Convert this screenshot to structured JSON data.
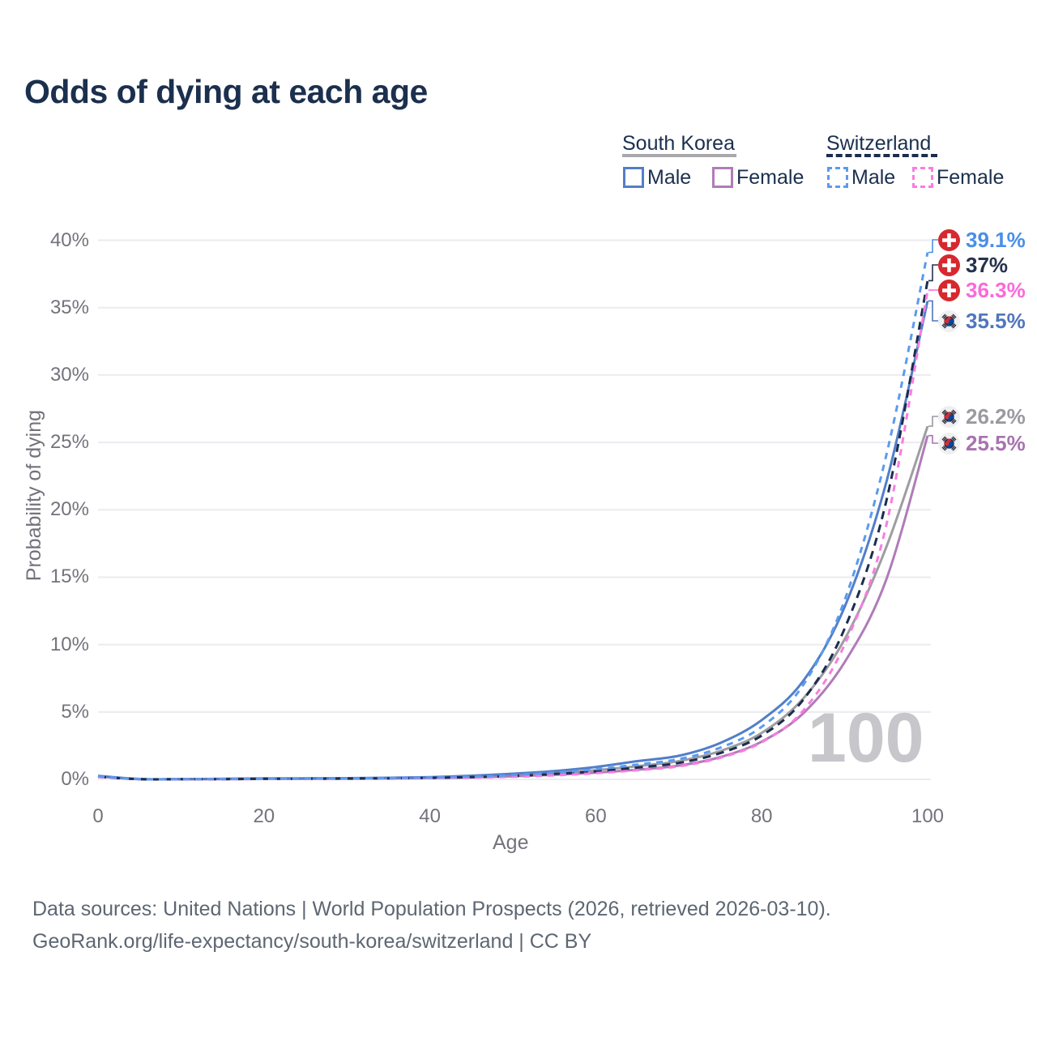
{
  "title": "Odds of dying at each age",
  "legend": {
    "groups": [
      {
        "label": "South Korea",
        "underline_color": "#a8a8ad",
        "underline_style": "solid",
        "items": [
          {
            "label": "Male",
            "color": "#537ec8",
            "style": "solid"
          },
          {
            "label": "Female",
            "color": "#b07cb8",
            "style": "solid"
          }
        ]
      },
      {
        "label": "Switzerland",
        "underline_color": "#1d2c4e",
        "underline_style": "dashed",
        "items": [
          {
            "label": "Male",
            "color": "#5a9bef",
            "style": "dashed"
          },
          {
            "label": "Female",
            "color": "#fa7ce0",
            "style": "dashed"
          }
        ]
      }
    ]
  },
  "watermark": "100",
  "footer": {
    "line1": "Data sources: United Nations | World Population Prospects (2026, retrieved 2026-03-10).",
    "line2": "GeoRank.org/life-expectancy/south-korea/switzerland | CC BY"
  },
  "chart_data": {
    "type": "line",
    "title": "Odds of dying at each age",
    "xlabel": "Age",
    "ylabel": "Probability of dying",
    "xlim": [
      0,
      100
    ],
    "ylim": [
      0,
      40
    ],
    "x_ticks": [
      0,
      20,
      40,
      60,
      80,
      100
    ],
    "y_ticks": [
      "0%",
      "5%",
      "10%",
      "15%",
      "20%",
      "25%",
      "30%",
      "35%",
      "40%"
    ],
    "grid": "horizontal-only",
    "grid_color": "#ebebf0",
    "x": [
      0,
      5,
      10,
      15,
      20,
      25,
      30,
      35,
      40,
      45,
      50,
      55,
      60,
      65,
      70,
      75,
      80,
      85,
      90,
      95,
      100
    ],
    "series": [
      {
        "name": "South Korea combined",
        "country": "South Korea",
        "sex": "combined",
        "color": "#9d9da2",
        "dash": "solid",
        "values": [
          0.24,
          0.02,
          0.015,
          0.03,
          0.05,
          0.06,
          0.07,
          0.09,
          0.13,
          0.2,
          0.31,
          0.46,
          0.68,
          0.98,
          1.35,
          2.1,
          3.45,
          6.0,
          10.4,
          17.2,
          26.2
        ],
        "end_label": "26.2%",
        "end_label_color": "#9a9aa0",
        "flag": "kr"
      },
      {
        "name": "South Korea female",
        "country": "South Korea",
        "sex": "female",
        "color": "#b07cb8",
        "dash": "solid",
        "values": [
          0.22,
          0.015,
          0.01,
          0.02,
          0.03,
          0.04,
          0.05,
          0.07,
          0.1,
          0.15,
          0.23,
          0.34,
          0.5,
          0.72,
          1.02,
          1.65,
          2.8,
          4.9,
          8.7,
          14.8,
          25.5
        ],
        "end_label": "25.5%",
        "end_label_color": "#a873b0",
        "flag": "kr"
      },
      {
        "name": "South Korea male",
        "country": "South Korea",
        "sex": "male",
        "color": "#537ec8",
        "dash": "solid",
        "values": [
          0.26,
          0.03,
          0.02,
          0.04,
          0.07,
          0.08,
          0.09,
          0.12,
          0.17,
          0.27,
          0.42,
          0.62,
          0.92,
          1.35,
          1.75,
          2.7,
          4.4,
          7.3,
          12.8,
          22.0,
          35.5
        ],
        "end_label": "35.5%",
        "end_label_color": "#5076bd",
        "flag": "kr"
      },
      {
        "name": "Switzerland combined",
        "country": "Switzerland",
        "sex": "combined",
        "color": "#1d2c4e",
        "dash": "dashed",
        "values": [
          0.19,
          0.015,
          0.01,
          0.02,
          0.04,
          0.05,
          0.06,
          0.08,
          0.11,
          0.16,
          0.25,
          0.4,
          0.6,
          0.88,
          1.22,
          1.95,
          3.25,
          5.9,
          11.2,
          20.6,
          37.0
        ],
        "end_label": "37%",
        "end_label_color": "#25314d",
        "flag": "ch"
      },
      {
        "name": "Switzerland female",
        "country": "Switzerland",
        "sex": "female",
        "color": "#fa7ce0",
        "dash": "dashed",
        "values": [
          0.17,
          0.01,
          0.01,
          0.02,
          0.03,
          0.04,
          0.05,
          0.07,
          0.09,
          0.13,
          0.19,
          0.3,
          0.46,
          0.68,
          0.97,
          1.6,
          2.75,
          5.1,
          10.0,
          18.8,
          36.3
        ],
        "end_label": "36.3%",
        "end_label_color": "#fb6ad9",
        "flag": "ch"
      },
      {
        "name": "Switzerland male",
        "country": "Switzerland",
        "sex": "male",
        "color": "#5a9bef",
        "dash": "dashed",
        "values": [
          0.21,
          0.02,
          0.01,
          0.03,
          0.06,
          0.07,
          0.08,
          0.1,
          0.14,
          0.2,
          0.31,
          0.5,
          0.75,
          1.1,
          1.5,
          2.35,
          3.9,
          7.0,
          13.3,
          24.0,
          39.1
        ],
        "end_label": "39.1%",
        "end_label_color": "#4a8fe8",
        "flag": "ch"
      }
    ]
  }
}
